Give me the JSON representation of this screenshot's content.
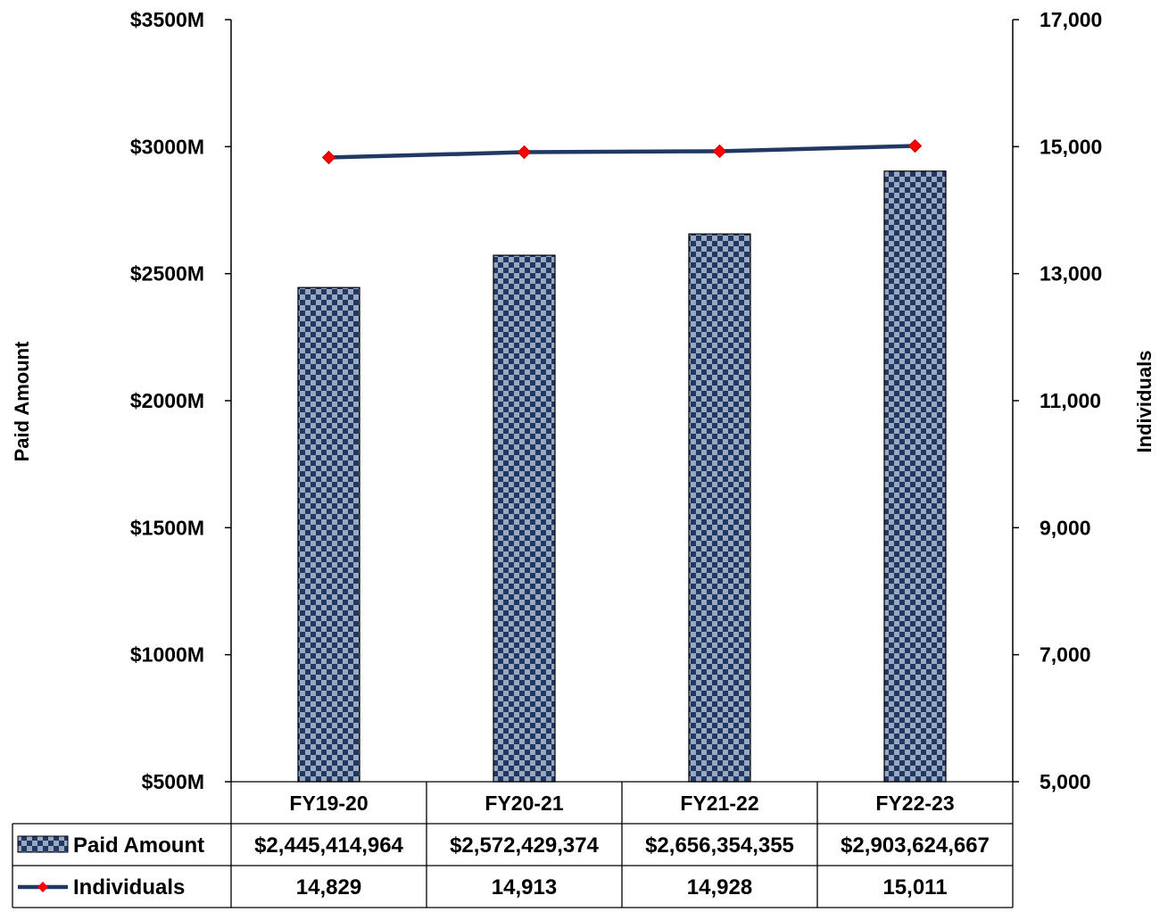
{
  "chart_data": {
    "type": "bar",
    "categories": [
      "FY19-20",
      "FY20-21",
      "FY21-22",
      "FY22-23"
    ],
    "series": [
      {
        "name": "Paid Amount",
        "kind": "bar",
        "axis": "left",
        "values": [
          2445414964,
          2572429374,
          2656354355,
          2903624667
        ],
        "labels": [
          "$2,445,414,964",
          "$2,572,429,374",
          "$2,656,354,355",
          "$2,903,624,667"
        ]
      },
      {
        "name": "Individuals",
        "kind": "line",
        "axis": "right",
        "values": [
          14829,
          14913,
          14928,
          15011
        ],
        "labels": [
          "14,829",
          "14,913",
          "14,928",
          "15,011"
        ]
      }
    ],
    "y_left": {
      "label": "Paid Amount",
      "range": [
        500000000,
        3500000000
      ],
      "ticks": [
        500000000,
        1000000000,
        1500000000,
        2000000000,
        2500000000,
        3000000000,
        3500000000
      ],
      "tick_labels": [
        "$500M",
        "$1000M",
        "$1500M",
        "$2000M",
        "$2500M",
        "$3000M",
        "$3500M"
      ]
    },
    "y_right": {
      "label": "Individuals",
      "range": [
        5000,
        17000
      ],
      "ticks": [
        5000,
        7000,
        9000,
        11000,
        13000,
        15000,
        17000
      ],
      "tick_labels": [
        "5,000",
        "7,000",
        "9,000",
        "11,000",
        "13,000",
        "15,000",
        "17,000"
      ]
    },
    "grid": false,
    "legend": "data-table",
    "colors": {
      "bar_pattern": "#1f3864",
      "line": "#203864",
      "marker": "#ff0000"
    }
  }
}
